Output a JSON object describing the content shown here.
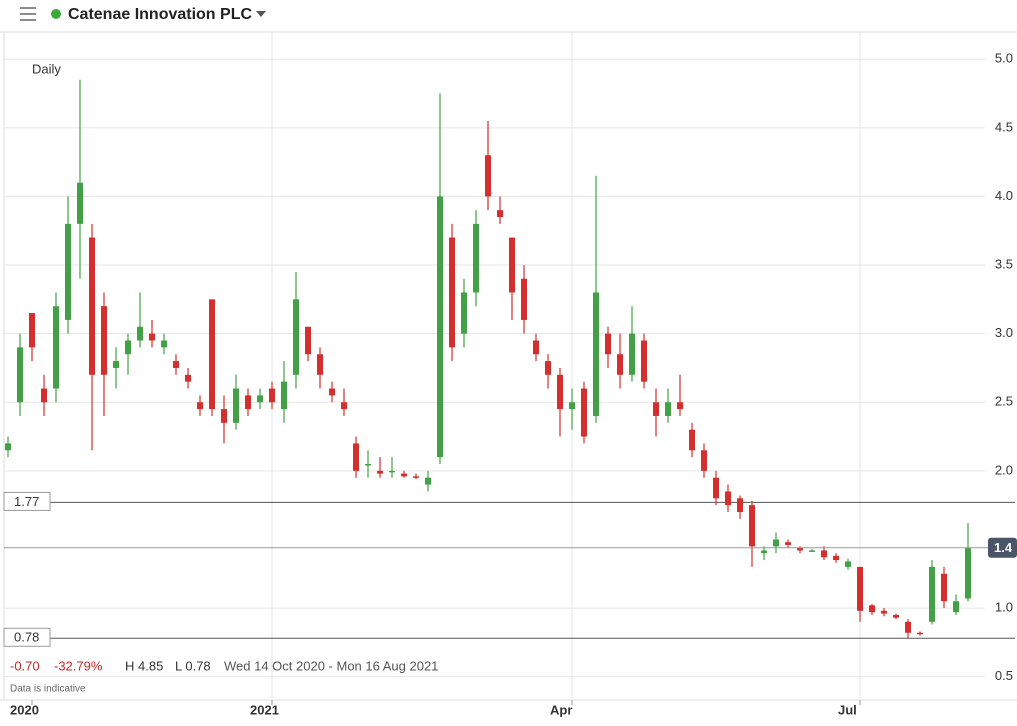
{
  "header": {
    "title": "Catenae Innovation PLC"
  },
  "chart_data": {
    "type": "candlestick",
    "period": "Daily",
    "categories": [
      null,
      null,
      "2020",
      null,
      null,
      null,
      null,
      null,
      null,
      null,
      null,
      null,
      null,
      null,
      null,
      null,
      null,
      null,
      null,
      null,
      null,
      null,
      "2021",
      null,
      null,
      null,
      null,
      null,
      null,
      null,
      null,
      null,
      null,
      null,
      null,
      null,
      null,
      null,
      null,
      null,
      null,
      null,
      null,
      null,
      null,
      null,
      null,
      "Apr",
      null,
      null,
      null,
      null,
      null,
      null,
      null,
      null,
      null,
      null,
      null,
      null,
      null,
      null,
      null,
      null,
      null,
      null,
      null,
      null,
      null,
      null,
      null,
      "Jul",
      null,
      null,
      null,
      null,
      null,
      null,
      null,
      null,
      null
    ],
    "open": [
      2.15,
      2.5,
      3.15,
      2.6,
      2.6,
      3.1,
      3.8,
      3.7,
      3.2,
      2.75,
      2.85,
      2.95,
      3.0,
      2.9,
      2.8,
      2.7,
      2.5,
      3.25,
      2.45,
      2.35,
      2.55,
      2.5,
      2.6,
      2.45,
      2.7,
      3.05,
      2.85,
      2.6,
      2.5,
      2.2,
      2.05,
      2.0,
      2.0,
      1.98,
      1.96,
      1.9,
      2.1,
      3.7,
      3.0,
      3.3,
      4.3,
      3.9,
      3.7,
      3.4,
      2.95,
      2.8,
      2.7,
      2.45,
      2.6,
      2.4,
      3.0,
      2.85,
      2.7,
      2.95,
      2.5,
      2.4,
      2.5,
      2.3,
      2.15,
      1.95,
      1.85,
      1.8,
      1.75,
      1.4,
      1.45,
      1.48,
      1.44,
      1.42,
      1.42,
      1.38,
      1.3,
      1.3,
      1.02,
      0.98,
      0.95,
      0.9,
      0.82,
      0.9,
      1.25,
      0.97,
      1.07
    ],
    "high": [
      2.25,
      3.0,
      3.15,
      2.7,
      3.3,
      4.0,
      4.85,
      3.8,
      3.3,
      2.9,
      3.0,
      3.3,
      3.1,
      3.0,
      2.85,
      2.75,
      2.55,
      3.25,
      2.55,
      2.7,
      2.6,
      2.6,
      2.65,
      2.8,
      3.45,
      3.05,
      2.9,
      2.65,
      2.6,
      2.25,
      2.15,
      2.1,
      2.1,
      2.0,
      1.98,
      2.0,
      4.75,
      3.8,
      3.4,
      3.9,
      4.55,
      4.0,
      3.7,
      3.5,
      3.0,
      2.85,
      2.75,
      2.6,
      2.65,
      4.15,
      3.05,
      3.0,
      3.2,
      3.0,
      2.6,
      2.6,
      2.7,
      2.35,
      2.2,
      2.0,
      1.9,
      1.82,
      1.78,
      1.45,
      1.55,
      1.5,
      1.45,
      1.43,
      1.45,
      1.4,
      1.36,
      1.3,
      1.03,
      1.0,
      0.96,
      0.92,
      0.83,
      1.35,
      1.3,
      1.1,
      1.62
    ],
    "low": [
      2.1,
      2.4,
      2.8,
      2.4,
      2.5,
      3.0,
      3.4,
      2.15,
      2.4,
      2.6,
      2.7,
      2.9,
      2.9,
      2.85,
      2.7,
      2.6,
      2.4,
      2.4,
      2.2,
      2.3,
      2.4,
      2.45,
      2.45,
      2.35,
      2.6,
      2.8,
      2.6,
      2.5,
      2.4,
      1.95,
      1.95,
      1.95,
      1.95,
      1.95,
      1.94,
      1.85,
      2.05,
      2.8,
      2.9,
      3.2,
      3.9,
      3.8,
      3.1,
      3.0,
      2.8,
      2.6,
      2.25,
      2.3,
      2.2,
      2.35,
      2.75,
      2.6,
      2.65,
      2.6,
      2.25,
      2.35,
      2.4,
      2.1,
      1.95,
      1.75,
      1.7,
      1.65,
      1.3,
      1.35,
      1.4,
      1.44,
      1.4,
      1.41,
      1.35,
      1.33,
      1.28,
      0.9,
      0.95,
      0.94,
      0.92,
      0.78,
      0.8,
      0.88,
      1.0,
      0.95,
      1.05
    ],
    "close": [
      2.2,
      2.9,
      2.9,
      2.5,
      3.2,
      3.8,
      4.1,
      2.7,
      2.7,
      2.8,
      2.95,
      3.05,
      2.95,
      2.95,
      2.75,
      2.65,
      2.45,
      2.45,
      2.35,
      2.6,
      2.45,
      2.55,
      2.5,
      2.65,
      3.25,
      2.85,
      2.7,
      2.55,
      2.45,
      2.0,
      2.05,
      1.98,
      2.0,
      1.96,
      1.95,
      1.95,
      4.0,
      2.9,
      3.3,
      3.8,
      4.0,
      3.85,
      3.3,
      3.1,
      2.85,
      2.7,
      2.45,
      2.5,
      2.25,
      3.3,
      2.85,
      2.7,
      3.0,
      2.65,
      2.4,
      2.5,
      2.45,
      2.15,
      2.0,
      1.8,
      1.75,
      1.7,
      1.45,
      1.42,
      1.5,
      1.46,
      1.42,
      1.42,
      1.37,
      1.35,
      1.34,
      0.98,
      0.97,
      0.96,
      0.93,
      0.82,
      0.81,
      1.3,
      1.05,
      1.05,
      1.44
    ],
    "up_color": "#43a047",
    "down_color": "#d32f2f",
    "ylim": [
      0.33,
      5.14
    ],
    "yticks": [
      0.5,
      {
        "value": 1,
        "label": "1.0"
      },
      {
        "value": 2,
        "label": "2.0"
      },
      2.5,
      {
        "value": 3,
        "label": "3.0"
      },
      3.5,
      {
        "value": 4,
        "label": "4.0"
      },
      4.5,
      {
        "value": 5,
        "label": "5.0"
      }
    ],
    "grid": true,
    "reference_lines": [
      1.77,
      0.78
    ],
    "price_tag": "1.4",
    "stats": {
      "change": "-0.70",
      "change_pct": "-32.79%",
      "high": "H 4.85",
      "low": "L 0.78",
      "range": "Wed 14 Oct 2020 - Mon 16 Aug 2021"
    },
    "note": "Data is indicative"
  }
}
